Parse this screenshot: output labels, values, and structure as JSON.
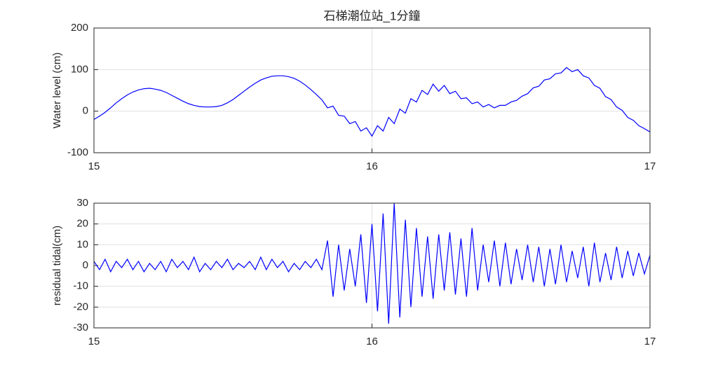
{
  "chart_data": [
    {
      "type": "line",
      "title": "石梯潮位站_1分鐘",
      "y_label": "Water level (cm)",
      "xlim": [
        15,
        17
      ],
      "xticks": [
        15,
        16,
        17
      ],
      "ylim": [
        -100,
        200
      ],
      "yticks": [
        -100,
        0,
        100,
        200
      ],
      "grid": true,
      "x": [
        15.0,
        15.02,
        15.04,
        15.06,
        15.08,
        15.1,
        15.12,
        15.14,
        15.16,
        15.18,
        15.2,
        15.22,
        15.24,
        15.26,
        15.28,
        15.3,
        15.32,
        15.34,
        15.36,
        15.38,
        15.4,
        15.42,
        15.44,
        15.46,
        15.48,
        15.5,
        15.52,
        15.54,
        15.56,
        15.58,
        15.6,
        15.62,
        15.64,
        15.66,
        15.68,
        15.7,
        15.72,
        15.74,
        15.76,
        15.78,
        15.8,
        15.82,
        15.84,
        15.86,
        15.88,
        15.9,
        15.92,
        15.94,
        15.96,
        15.98,
        16.0,
        16.02,
        16.04,
        16.06,
        16.08,
        16.1,
        16.12,
        16.14,
        16.16,
        16.18,
        16.2,
        16.22,
        16.24,
        16.26,
        16.28,
        16.3,
        16.32,
        16.34,
        16.36,
        16.38,
        16.4,
        16.42,
        16.44,
        16.46,
        16.48,
        16.5,
        16.52,
        16.54,
        16.56,
        16.58,
        16.6,
        16.62,
        16.64,
        16.66,
        16.68,
        16.7,
        16.72,
        16.74,
        16.76,
        16.78,
        16.8,
        16.82,
        16.84,
        16.86,
        16.88,
        16.9,
        16.92,
        16.94,
        16.96,
        16.98,
        17.0
      ],
      "series": [
        {
          "color": "#0000ff",
          "values": [
            -20,
            -12,
            -3,
            8,
            20,
            30,
            39,
            46,
            51,
            54,
            55,
            53,
            50,
            45,
            38,
            31,
            24,
            18,
            14,
            11,
            10,
            10,
            11,
            14,
            20,
            28,
            38,
            48,
            58,
            67,
            75,
            80,
            84,
            85,
            85,
            83,
            79,
            72,
            63,
            52,
            40,
            27,
            8,
            12,
            -10,
            -12,
            -30,
            -25,
            -48,
            -40,
            -60,
            -35,
            -48,
            -15,
            -30,
            5,
            -5,
            30,
            22,
            50,
            40,
            65,
            48,
            62,
            42,
            48,
            30,
            32,
            18,
            22,
            10,
            16,
            8,
            14,
            14,
            22,
            26,
            36,
            42,
            56,
            60,
            75,
            78,
            90,
            92,
            105,
            95,
            100,
            85,
            80,
            62,
            55,
            35,
            28,
            10,
            2,
            -15,
            -22,
            -35,
            -42,
            -50
          ]
        }
      ]
    },
    {
      "type": "line",
      "y_label": "residual tidal(cm)",
      "xlim": [
        15,
        17
      ],
      "xticks": [
        15,
        16,
        17
      ],
      "ylim": [
        -30,
        30
      ],
      "yticks": [
        -30,
        -20,
        -10,
        0,
        10,
        20,
        30
      ],
      "grid": true,
      "x": [
        15.0,
        15.02,
        15.04,
        15.06,
        15.08,
        15.1,
        15.12,
        15.14,
        15.16,
        15.18,
        15.2,
        15.22,
        15.24,
        15.26,
        15.28,
        15.3,
        15.32,
        15.34,
        15.36,
        15.38,
        15.4,
        15.42,
        15.44,
        15.46,
        15.48,
        15.5,
        15.52,
        15.54,
        15.56,
        15.58,
        15.6,
        15.62,
        15.64,
        15.66,
        15.68,
        15.7,
        15.72,
        15.74,
        15.76,
        15.78,
        15.8,
        15.82,
        15.84,
        15.86,
        15.88,
        15.9,
        15.92,
        15.94,
        15.96,
        15.98,
        16.0,
        16.02,
        16.04,
        16.06,
        16.08,
        16.1,
        16.12,
        16.14,
        16.16,
        16.18,
        16.2,
        16.22,
        16.24,
        16.26,
        16.28,
        16.3,
        16.32,
        16.34,
        16.36,
        16.38,
        16.4,
        16.42,
        16.44,
        16.46,
        16.48,
        16.5,
        16.52,
        16.54,
        16.56,
        16.58,
        16.6,
        16.62,
        16.64,
        16.66,
        16.68,
        16.7,
        16.72,
        16.74,
        16.76,
        16.78,
        16.8,
        16.82,
        16.84,
        16.86,
        16.88,
        16.9,
        16.92,
        16.94,
        16.96,
        16.98,
        17.0
      ],
      "series": [
        {
          "color": "#0000ff",
          "values": [
            2,
            -2,
            3,
            -3,
            2,
            -1,
            3,
            -2,
            2,
            -3,
            1,
            -2,
            2,
            -3,
            3,
            -1,
            2,
            -2,
            4,
            -3,
            1,
            -2,
            2,
            -1,
            3,
            -2,
            1,
            -1,
            2,
            -2,
            4,
            -2,
            3,
            -1,
            2,
            -3,
            1,
            -2,
            2,
            -1,
            3,
            -2,
            12,
            -15,
            10,
            -12,
            8,
            -10,
            15,
            -18,
            20,
            -22,
            25,
            -28,
            30,
            -25,
            22,
            -20,
            18,
            -15,
            14,
            -16,
            15,
            -12,
            16,
            -14,
            13,
            -15,
            18,
            -12,
            10,
            -8,
            12,
            -10,
            11,
            -9,
            8,
            -7,
            10,
            -8,
            9,
            -10,
            8,
            -9,
            10,
            -8,
            7,
            -6,
            9,
            -10,
            11,
            -8,
            6,
            -7,
            9,
            -6,
            7,
            -5,
            6,
            -4,
            5
          ]
        }
      ]
    }
  ]
}
